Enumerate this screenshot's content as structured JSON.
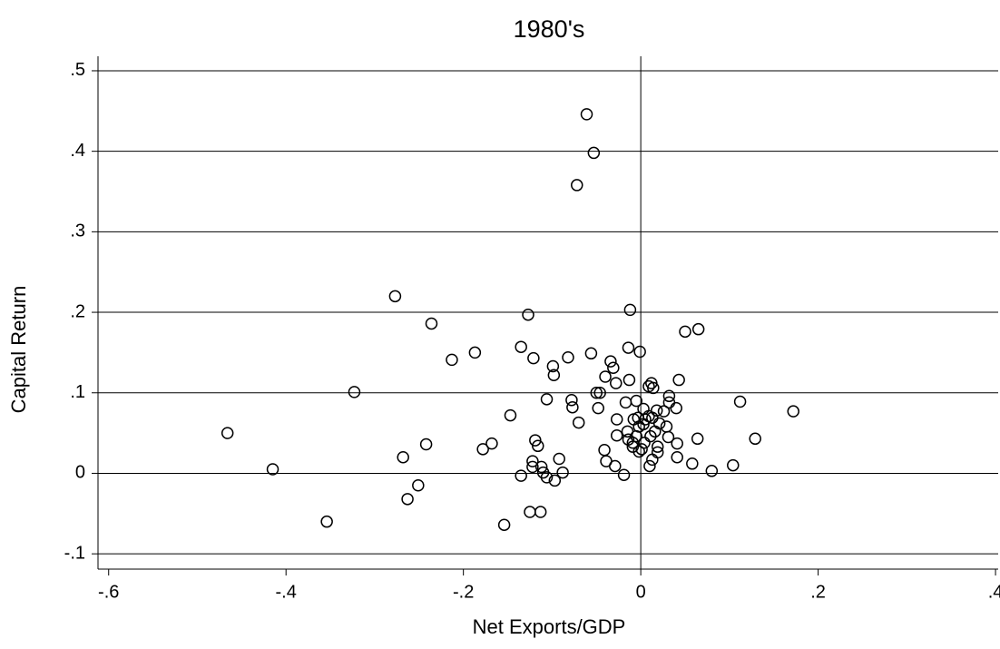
{
  "chart_data": {
    "type": "scatter",
    "title": "1980's",
    "x_label": "Net Exports/GDP",
    "y_label": "Capital Return",
    "color": "#000000",
    "grid": true,
    "reference_x": 0,
    "xlim": [
      -0.612,
      0.403
    ],
    "ylim": [
      -0.119,
      0.518
    ],
    "xticks": [
      {
        "value": -0.6,
        "label": "-.6"
      },
      {
        "value": -0.4,
        "label": "-.4"
      },
      {
        "value": -0.2,
        "label": "-.2"
      },
      0,
      {
        "value": 0.2,
        "label": ".2"
      },
      {
        "value": 0.4,
        "label": ".4"
      }
    ],
    "yticks": [
      {
        "value": -0.1,
        "label": "-.1"
      },
      0,
      {
        "value": 0.1,
        "label": ".1"
      },
      {
        "value": 0.2,
        "label": ".2"
      },
      {
        "value": 0.3,
        "label": ".3"
      },
      {
        "value": 0.4,
        "label": ".4"
      },
      {
        "value": 0.5,
        "label": ".5"
      }
    ],
    "x": [
      -0.466,
      -0.415,
      -0.354,
      -0.323,
      -0.277,
      -0.268,
      -0.263,
      -0.236,
      -0.242,
      -0.251,
      -0.213,
      -0.187,
      -0.178,
      -0.168,
      -0.147,
      -0.154,
      -0.135,
      -0.135,
      -0.127,
      -0.121,
      -0.122,
      -0.122,
      -0.119,
      -0.116,
      -0.125,
      -0.113,
      -0.112,
      -0.11,
      -0.106,
      -0.106,
      -0.099,
      -0.098,
      -0.097,
      -0.092,
      -0.088,
      -0.082,
      -0.078,
      -0.077,
      -0.072,
      -0.07,
      -0.061,
      -0.056,
      -0.053,
      -0.05,
      -0.046,
      -0.048,
      -0.04,
      -0.041,
      -0.039,
      -0.034,
      -0.031,
      -0.028,
      -0.027,
      -0.029,
      -0.027,
      -0.019,
      -0.017,
      -0.014,
      -0.013,
      -0.012,
      -0.015,
      -0.014,
      -0.009,
      -0.009,
      -0.008,
      -0.005,
      -0.005,
      -0.003,
      -0.002,
      -0.002,
      -0.001,
      0.001,
      0.003,
      0.003,
      0.004,
      0.005,
      0.009,
      0.009,
      0.01,
      0.011,
      0.012,
      0.013,
      0.014,
      0.013,
      0.016,
      0.018,
      0.019,
      0.019,
      0.021,
      0.026,
      0.029,
      0.031,
      0.032,
      0.032,
      0.04,
      0.041,
      0.041,
      0.043,
      0.05,
      0.058,
      0.064,
      0.065,
      0.08,
      0.104,
      0.112,
      0.129,
      0.172
    ],
    "values": [
      0.05,
      0.005,
      -0.06,
      0.101,
      0.22,
      0.02,
      -0.032,
      0.186,
      0.036,
      -0.015,
      0.141,
      0.15,
      0.03,
      0.037,
      0.072,
      -0.064,
      0.157,
      -0.003,
      0.197,
      0.143,
      0.015,
      0.008,
      0.041,
      0.034,
      -0.048,
      -0.048,
      0.008,
      0.001,
      -0.005,
      0.092,
      0.133,
      0.122,
      -0.009,
      0.018,
      0.001,
      0.144,
      0.091,
      0.082,
      0.358,
      0.063,
      0.446,
      0.149,
      0.398,
      0.1,
      0.1,
      0.081,
      0.12,
      0.029,
      0.015,
      0.139,
      0.131,
      0.112,
      0.067,
      0.009,
      0.047,
      -0.002,
      0.088,
      0.156,
      0.116,
      0.203,
      0.052,
      0.042,
      0.038,
      0.033,
      0.067,
      0.09,
      0.046,
      0.069,
      0.027,
      0.058,
      0.151,
      0.03,
      0.061,
      0.08,
      0.038,
      0.067,
      0.071,
      0.108,
      0.009,
      0.046,
      0.112,
      0.017,
      0.106,
      0.069,
      0.052,
      0.078,
      0.026,
      0.033,
      0.062,
      0.077,
      0.058,
      0.045,
      0.088,
      0.096,
      0.081,
      0.037,
      0.02,
      0.116,
      0.176,
      0.012,
      0.043,
      0.179,
      0.003,
      0.01,
      0.089,
      0.043,
      0.077
    ]
  }
}
